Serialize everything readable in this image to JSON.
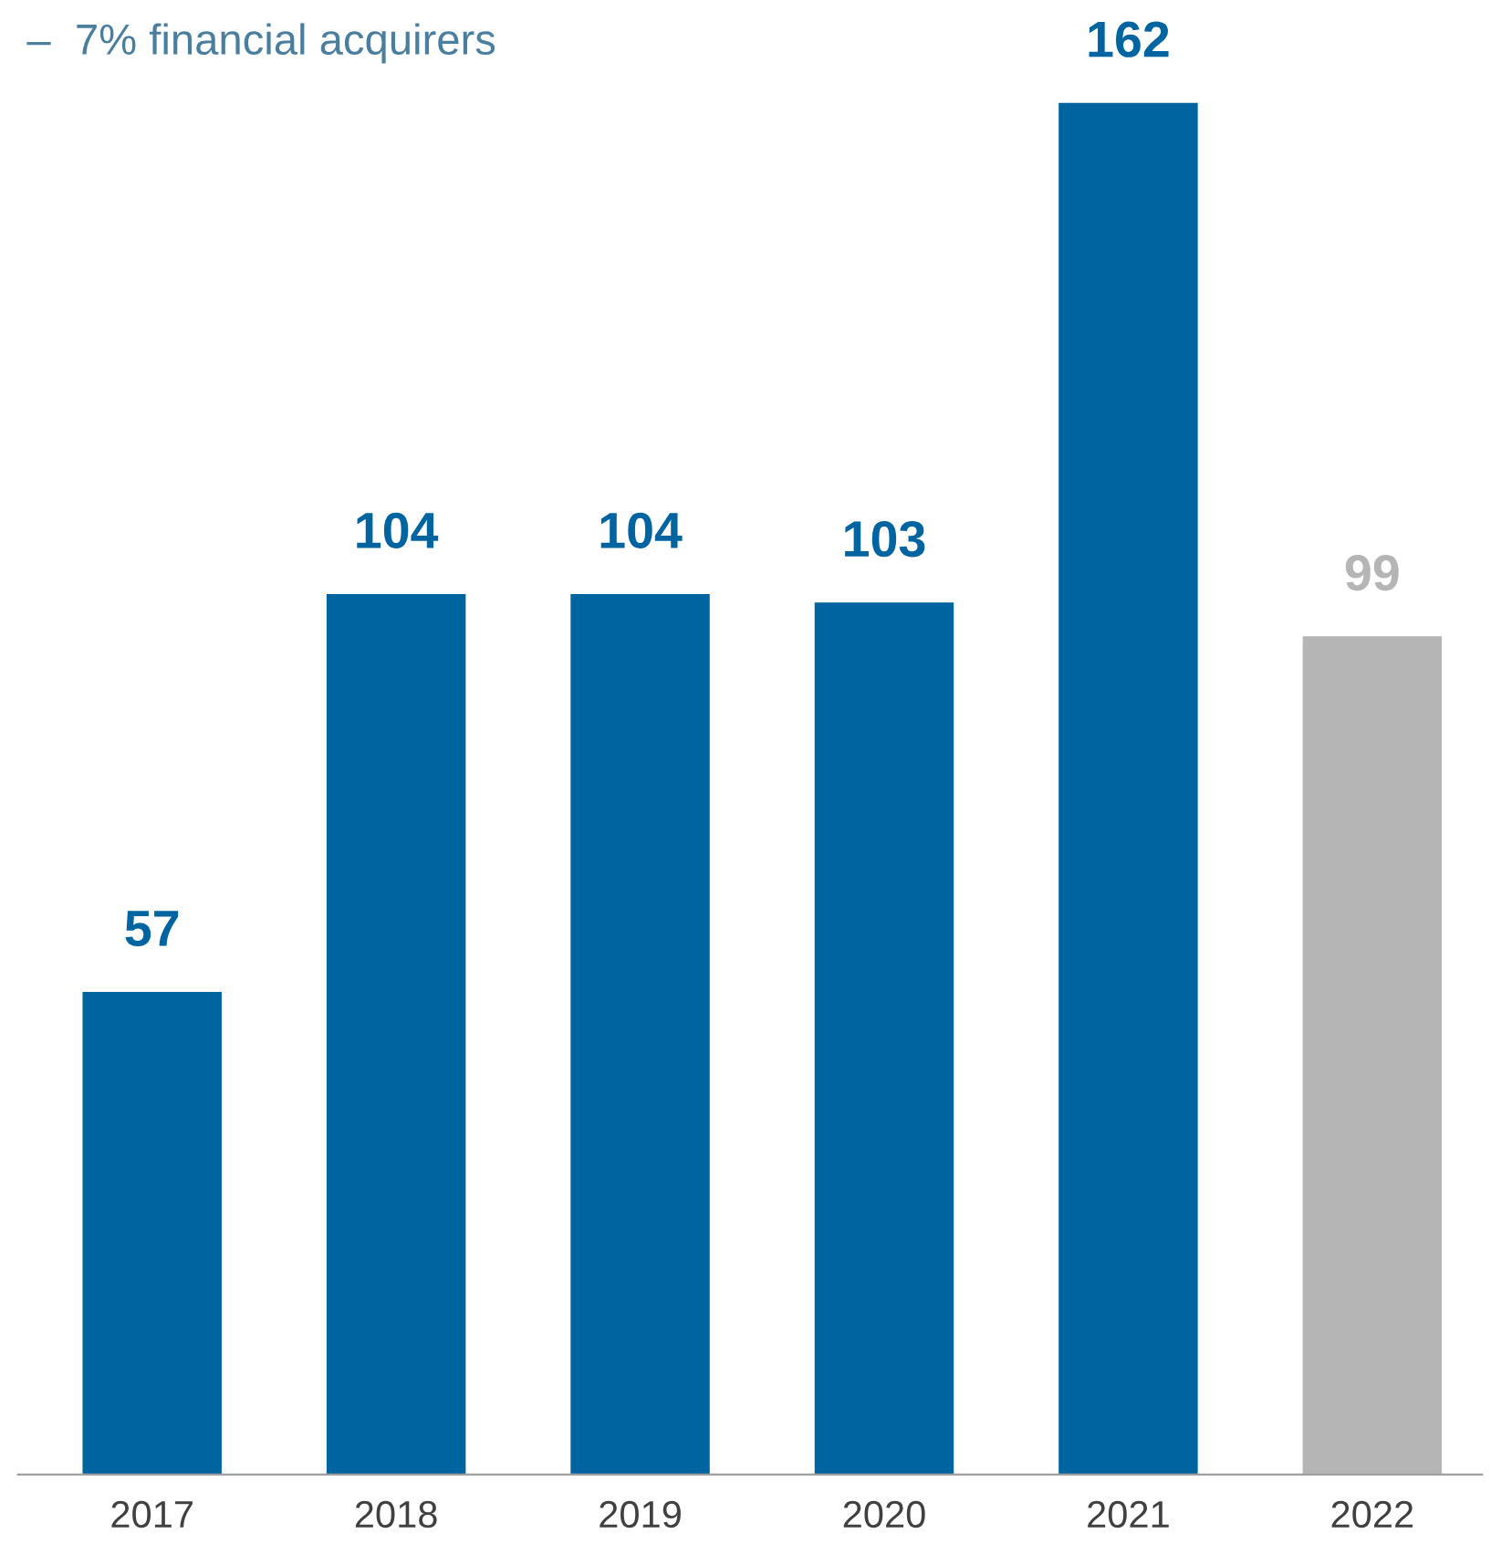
{
  "chart_data": {
    "type": "bar",
    "categories": [
      "2017",
      "2018",
      "2019",
      "2020",
      "2021",
      "2022"
    ],
    "values": [
      57,
      104,
      104,
      103,
      162,
      99
    ],
    "colors": [
      "#0064a0",
      "#0064a0",
      "#0064a0",
      "#0064a0",
      "#0064a0",
      "#b5b5b5"
    ],
    "data_labels": true,
    "grid": false,
    "legend": false,
    "tick_labels": "x",
    "annotations": [
      "–  7% financial acquirers"
    ]
  }
}
